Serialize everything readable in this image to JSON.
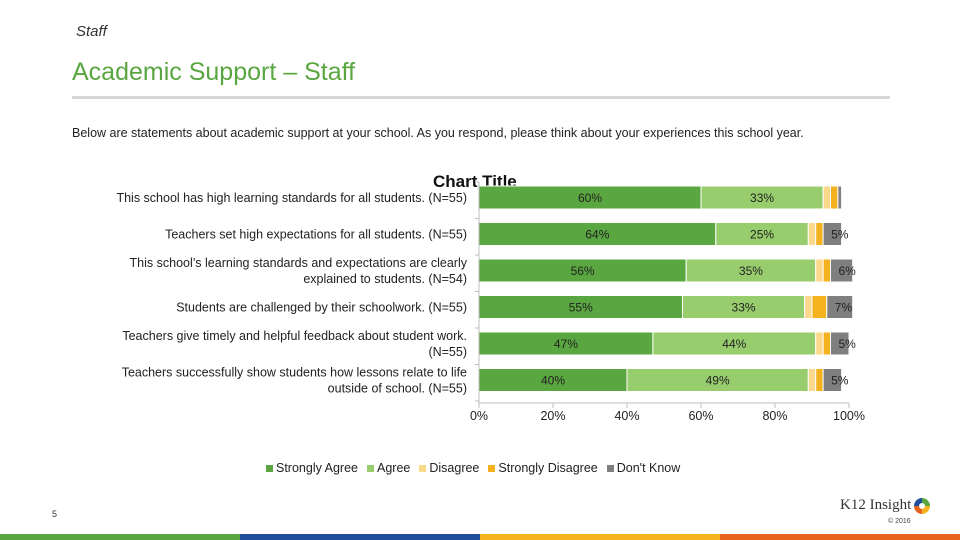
{
  "header": {
    "kicker": "Staff",
    "title": "Academic Support – Staff",
    "intro": "Below are statements about academic support at your school. As you respond, please think about your experiences this school year."
  },
  "chart_data": {
    "type": "bar",
    "orientation": "horizontal",
    "stacked": true,
    "title": "Chart Title",
    "categories": [
      "This school has high learning standards for all students. (N=55)",
      "Teachers set high expectations for all students. (N=55)",
      "This school’s learning standards and expectations are clearly explained to students. (N=54)",
      "Students are challenged by their schoolwork. (N=55)",
      "Teachers give timely and helpful feedback about student work. (N=55)",
      "Teachers successfully show students how lessons relate to life outside of school. (N=55)"
    ],
    "category_lines": [
      [
        "This school has high learning standards for all students. (N=55)"
      ],
      [
        "Teachers set high expectations for all students. (N=55)"
      ],
      [
        "This school’s learning standards and expectations are clearly",
        "explained to students. (N=54)"
      ],
      [
        "Students are challenged by their schoolwork. (N=55)"
      ],
      [
        "Teachers give timely and helpful feedback about student work.",
        "(N=55)"
      ],
      [
        "Teachers successfully show students how lessons relate to life",
        "outside of school. (N=55)"
      ]
    ],
    "series": [
      {
        "name": "Strongly Agree",
        "color": "#5aa640",
        "values": [
          60,
          64,
          56,
          55,
          47,
          40
        ],
        "labels": [
          "60%",
          "64%",
          "56%",
          "55%",
          "47%",
          "40%"
        ]
      },
      {
        "name": "Agree",
        "color": "#98cd6e",
        "values": [
          33,
          25,
          35,
          33,
          44,
          49
        ],
        "labels": [
          "33%",
          "25%",
          "35%",
          "33%",
          "44%",
          "49%"
        ]
      },
      {
        "name": "Disagree",
        "color": "#fad88c",
        "values": [
          2,
          2,
          2,
          2,
          2,
          2
        ],
        "labels": [
          "",
          "",
          "",
          "",
          "",
          ""
        ]
      },
      {
        "name": "Strongly Disagree",
        "color": "#f3b21e",
        "values": [
          2,
          2,
          2,
          4,
          2,
          2
        ],
        "labels": [
          "",
          "",
          "",
          "",
          "",
          ""
        ]
      },
      {
        "name": "Don't Know",
        "color": "#7f7f7f",
        "values": [
          1,
          5,
          6,
          7,
          5,
          5
        ],
        "labels": [
          "",
          "5%",
          "6%",
          "7%",
          "5%",
          "5%"
        ]
      }
    ],
    "xlim": [
      0,
      100
    ],
    "xticks": [
      "0%",
      "20%",
      "40%",
      "60%",
      "80%",
      "100%"
    ],
    "legend_position": "bottom",
    "grid": false
  },
  "footer": {
    "page_number": "5",
    "logo_text": "K12 Insight",
    "copyright": "© 2016",
    "stripe_colors": [
      "#5aa640",
      "#1f4e9c",
      "#f3b21e",
      "#e8641e"
    ]
  }
}
